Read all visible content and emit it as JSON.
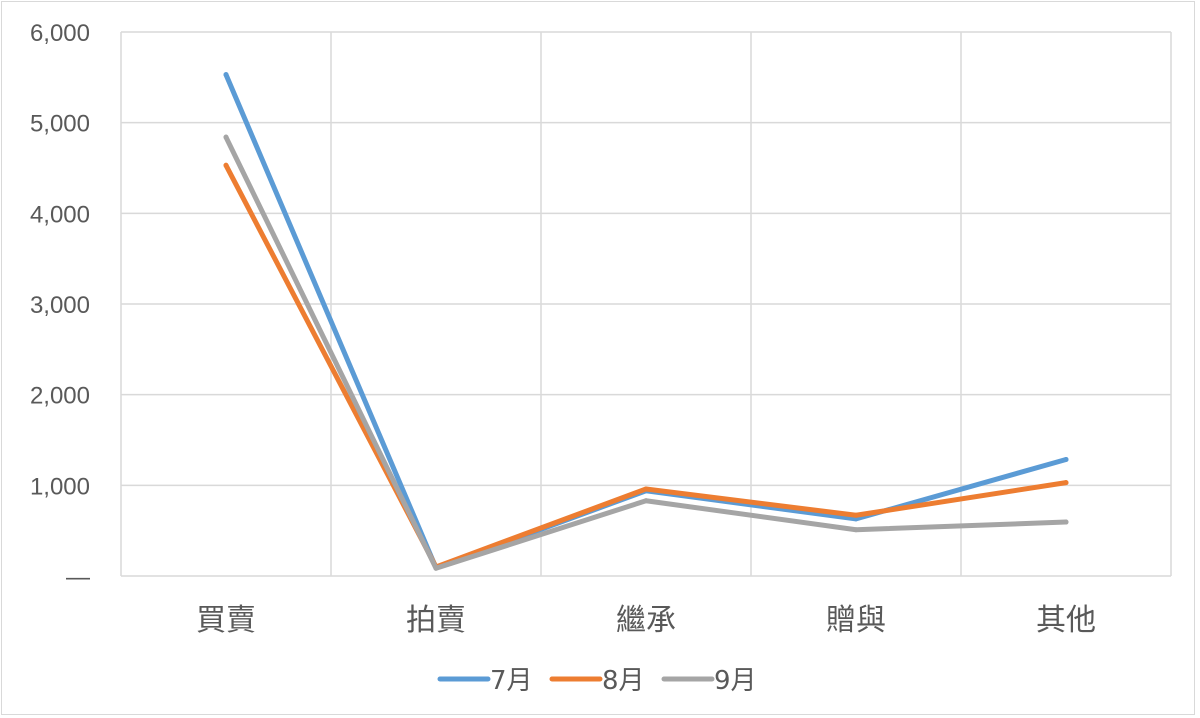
{
  "chart_data": {
    "type": "line",
    "categories": [
      "買賣",
      "拍賣",
      "繼承",
      "贈與",
      "其他"
    ],
    "series": [
      {
        "name": "7月",
        "color": "#5B9BD5",
        "values": [
          5530,
          90,
          940,
          630,
          1285
        ]
      },
      {
        "name": "8月",
        "color": "#ED7D31",
        "values": [
          4530,
          100,
          960,
          670,
          1030
        ]
      },
      {
        "name": "9月",
        "color": "#A5A5A5",
        "values": [
          4840,
          85,
          830,
          510,
          595
        ]
      }
    ],
    "ylim": [
      0,
      6000
    ],
    "yticks": [
      0,
      1000,
      2000,
      3000,
      4000,
      5000,
      6000
    ],
    "ytick_labels": [
      "—",
      "1,000",
      "2,000",
      "3,000",
      "4,000",
      "5,000",
      "6,000"
    ],
    "grid": true,
    "legend_position": "bottom",
    "title": "",
    "xlabel": "",
    "ylabel": ""
  }
}
